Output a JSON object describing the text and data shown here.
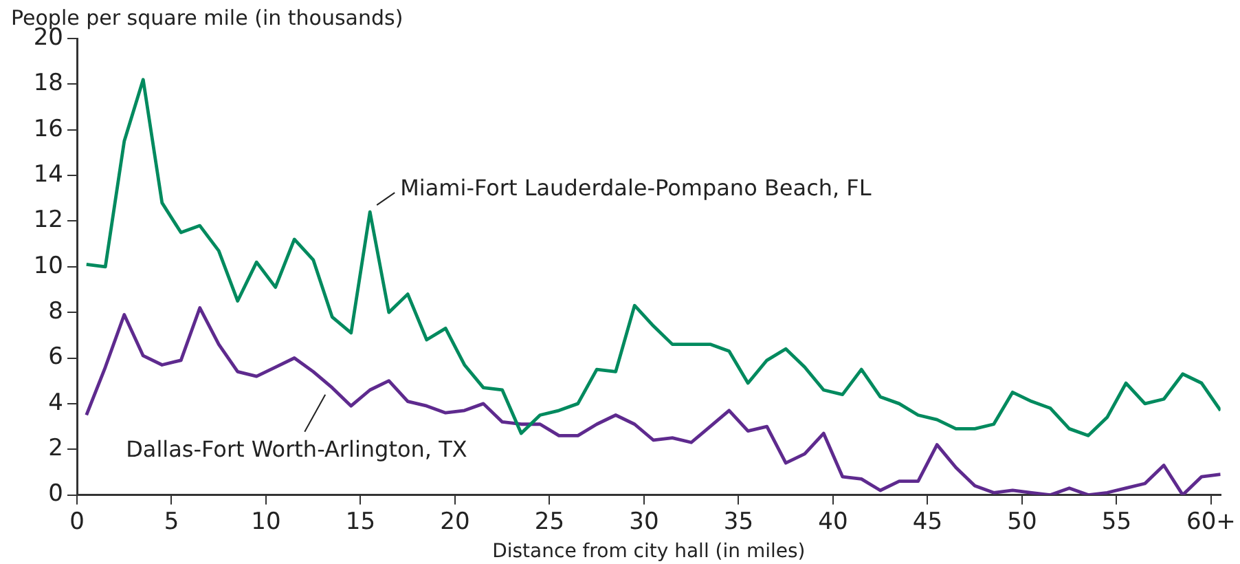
{
  "chart_data": {
    "type": "line",
    "xlabel": "Distance from city hall (in miles)",
    "ylabel": "People per square mile (in thousands)",
    "x": [
      0.5,
      1.5,
      2.5,
      3.5,
      4.5,
      5.5,
      6.5,
      7.5,
      8.5,
      9.5,
      10.5,
      11.5,
      12.5,
      13.5,
      14.5,
      15.5,
      16.5,
      17.5,
      18.5,
      19.5,
      20.5,
      21.5,
      22.5,
      23.5,
      24.5,
      25.5,
      26.5,
      27.5,
      28.5,
      29.5,
      30.5,
      31.5,
      32.5,
      33.5,
      34.5,
      35.5,
      36.5,
      37.5,
      38.5,
      39.5,
      40.5,
      41.5,
      42.5,
      43.5,
      44.5,
      45.5,
      46.5,
      47.5,
      48.5,
      49.5,
      50.5,
      51.5,
      52.5,
      53.5,
      54.5,
      55.5,
      56.5,
      57.5,
      58.5,
      59.5,
      60.5
    ],
    "series": [
      {
        "name": "Miami-Fort Lauderdale-Pompano Beach, FL",
        "color": "#008a5e",
        "values": [
          10.1,
          10.0,
          15.5,
          18.2,
          12.8,
          11.5,
          11.8,
          10.7,
          8.5,
          10.2,
          9.1,
          11.2,
          10.3,
          7.8,
          7.1,
          12.4,
          8.0,
          8.8,
          6.8,
          7.3,
          5.7,
          4.7,
          4.6,
          2.7,
          3.5,
          3.7,
          4.0,
          5.5,
          5.4,
          8.3,
          7.4,
          6.6,
          6.6,
          6.6,
          6.3,
          4.9,
          5.9,
          6.4,
          5.6,
          4.6,
          4.4,
          5.5,
          4.3,
          4.0,
          3.5,
          3.3,
          2.9,
          2.9,
          3.1,
          4.5,
          4.1,
          3.8,
          2.9,
          2.6,
          3.4,
          4.9,
          4.0,
          4.2,
          5.3,
          4.9,
          3.7
        ]
      },
      {
        "name": "Dallas-Fort Worth-Arlington, TX",
        "color": "#5e2a8e",
        "values": [
          3.5,
          5.6,
          7.9,
          6.1,
          5.7,
          5.9,
          8.2,
          6.6,
          5.4,
          5.2,
          5.6,
          6.0,
          5.4,
          4.7,
          3.9,
          4.6,
          5.0,
          4.1,
          3.9,
          3.6,
          3.7,
          4.0,
          3.2,
          3.1,
          3.1,
          2.6,
          2.6,
          3.1,
          3.5,
          3.1,
          2.4,
          2.5,
          2.3,
          3.0,
          3.7,
          2.8,
          3.0,
          1.4,
          1.8,
          2.7,
          0.8,
          0.7,
          0.2,
          0.6,
          0.6,
          2.2,
          1.2,
          0.4,
          0.1,
          0.2,
          0.1,
          0.0,
          0.3,
          0.0,
          0.1,
          0.3,
          0.5,
          1.3,
          0.0,
          0.8,
          0.9
        ]
      }
    ],
    "xlim": [
      0,
      60.5
    ],
    "xticks": [
      0,
      5,
      10,
      15,
      20,
      25,
      30,
      35,
      40,
      45,
      50,
      55,
      {
        "value": 60,
        "label": "60+"
      }
    ],
    "ylim": [
      0,
      20
    ],
    "yticks": [
      0,
      2,
      4,
      6,
      8,
      10,
      12,
      14,
      16,
      18,
      20
    ],
    "grid": false,
    "legend": false,
    "marker": "none",
    "line_style": "solid"
  }
}
